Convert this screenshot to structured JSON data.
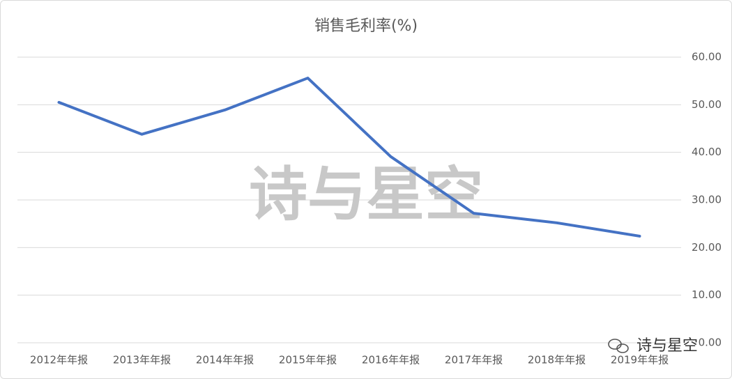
{
  "chart_data": {
    "type": "line",
    "title": "销售毛利率(%)",
    "categories": [
      "2012年年报",
      "2013年年报",
      "2014年年报",
      "2015年年报",
      "2016年年报",
      "2017年年报",
      "2018年年报",
      "2019年年报"
    ],
    "series": [
      {
        "name": "销售毛利率",
        "color": "#4472c4",
        "values": [
          50.5,
          43.8,
          48.9,
          55.6,
          39.1,
          27.2,
          25.2,
          22.4
        ]
      }
    ],
    "ylim": [
      0,
      60
    ],
    "yticks": [
      {
        "value": 0,
        "label": "0.00"
      },
      {
        "value": 10,
        "label": "10.00"
      },
      {
        "value": 20,
        "label": "20.00"
      },
      {
        "value": 30,
        "label": "30.00"
      },
      {
        "value": 40,
        "label": "40.00"
      },
      {
        "value": 50,
        "label": "50.00"
      },
      {
        "value": 60,
        "label": "60.00"
      }
    ],
    "y_axis_side": "right",
    "grid": true,
    "legend": false,
    "annotations": [
      "诗与星空",
      "诗与星空"
    ]
  }
}
